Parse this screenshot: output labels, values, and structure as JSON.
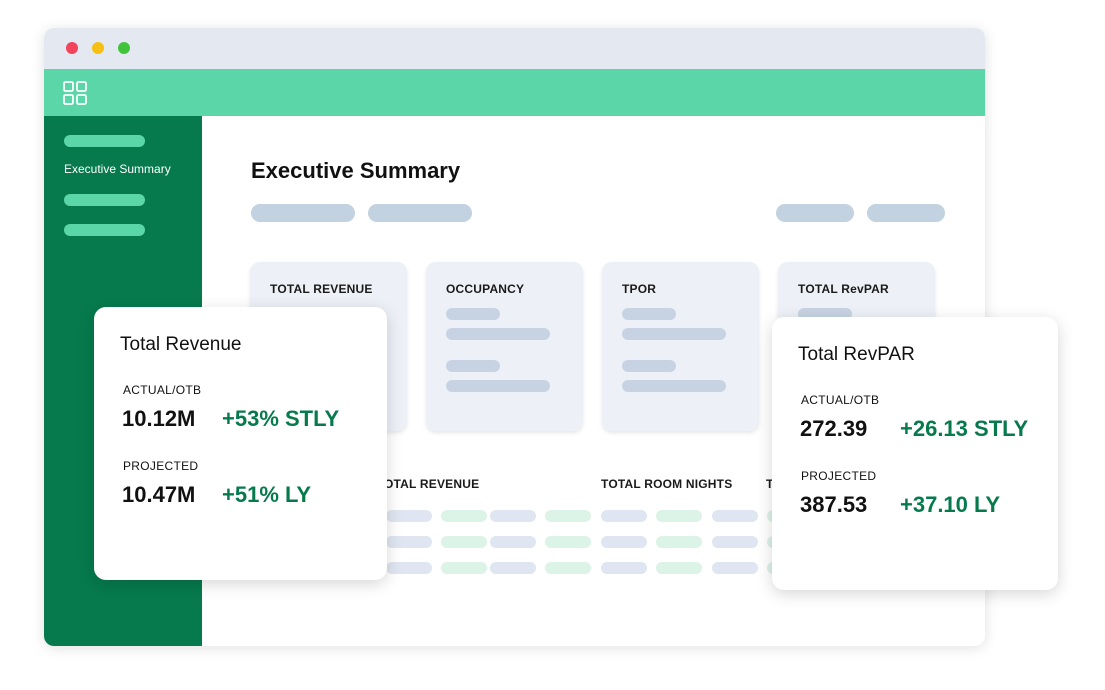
{
  "sidebar": {
    "active_label": "Executive Summary"
  },
  "main": {
    "title": "Executive Summary"
  },
  "kpi_cards": [
    {
      "title": "TOTAL REVENUE"
    },
    {
      "title": "OCCUPANCY"
    },
    {
      "title": "TPOR"
    },
    {
      "title": "TOTAL RevPAR"
    }
  ],
  "table": {
    "headers": [
      "OTAL REVENUE",
      "TOTAL ROOM NIGHTS",
      "T"
    ]
  },
  "total_revenue_card": {
    "title": "Total Revenue",
    "actual_label": "ACTUAL/OTB",
    "actual_value": "10.12M",
    "actual_delta": "+53% STLY",
    "projected_label": "PROJECTED",
    "projected_value": "10.47M",
    "projected_delta": "+51% LY"
  },
  "total_revpar_card": {
    "title": "Total RevPAR",
    "actual_label": "ACTUAL/OTB",
    "actual_value": "272.39",
    "actual_delta": "+26.13 STLY",
    "projected_label": "PROJECTED",
    "projected_value": "387.53",
    "projected_delta": "+37.10 LY"
  },
  "icons": {
    "apps": "grid-icon"
  },
  "colors": {
    "brand_green": "#067a4d",
    "accent_mint": "#5bd6a8",
    "positive_delta": "#067a4d",
    "titlebar": "#e3e8f1"
  }
}
